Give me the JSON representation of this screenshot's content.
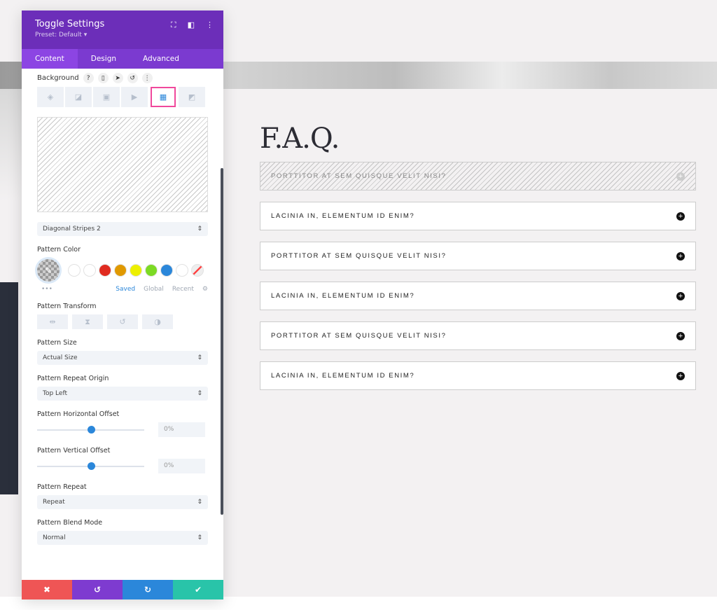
{
  "panel": {
    "title": "Toggle Settings",
    "preset": "Preset: Default ▾",
    "tabs": [
      "Content",
      "Design",
      "Advanced"
    ],
    "background_label": "Background",
    "pattern_select": "Diagonal Stripes 2",
    "pattern_color_label": "Pattern Color",
    "swatches": [
      "#ffffff",
      "#ffffff",
      "#e02b20",
      "#e09900",
      "#edf000",
      "#7cda24",
      "#2b87da",
      "#ffffff"
    ],
    "color_tabs": [
      "Saved",
      "Global",
      "Recent"
    ],
    "pattern_transform_label": "Pattern Transform",
    "pattern_size_label": "Pattern Size",
    "pattern_size": "Actual Size",
    "repeat_origin_label": "Pattern Repeat Origin",
    "repeat_origin": "Top Left",
    "h_offset_label": "Pattern Horizontal Offset",
    "h_offset": "0%",
    "v_offset_label": "Pattern Vertical Offset",
    "v_offset": "0%",
    "repeat_label": "Pattern Repeat",
    "repeat": "Repeat",
    "blend_label": "Pattern Blend Mode",
    "blend": "Normal",
    "colors": {
      "header": "#6c2eb9",
      "cancel": "#ef5555",
      "undo": "#7e3bd0",
      "redo": "#2b87da",
      "save": "#29c4a9"
    }
  },
  "faq": {
    "title": "F.A.Q.",
    "items": [
      "PORTTITOR AT SEM QUISQUE VELIT NISI?",
      "LACINIA IN, ELEMENTUM ID ENIM?",
      "PORTTITOR AT SEM QUISQUE VELIT NISI?",
      "LACINIA IN, ELEMENTUM ID ENIM?",
      "PORTTITOR AT SEM QUISQUE VELIT NISI?",
      "LACINIA IN, ELEMENTUM ID ENIM?"
    ]
  }
}
